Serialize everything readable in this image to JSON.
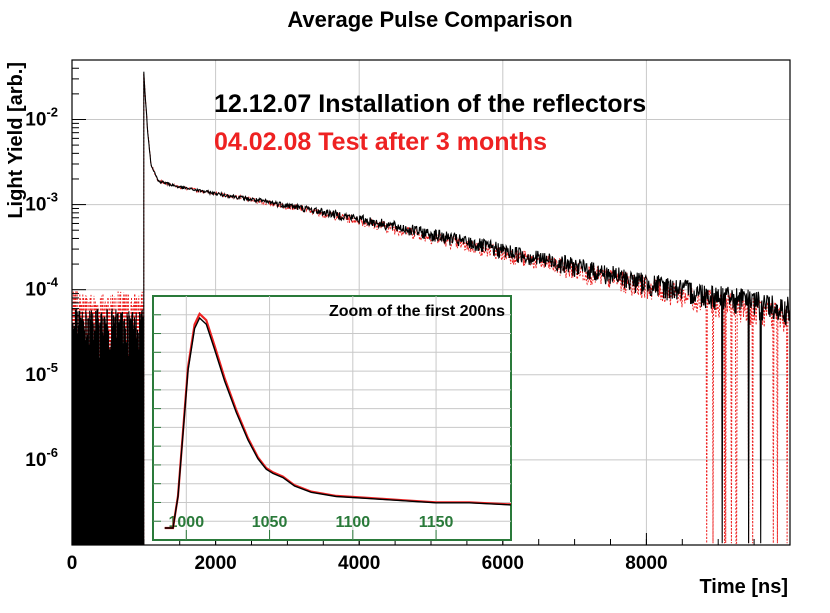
{
  "chart_data": {
    "type": "line",
    "title": "Average Pulse Comparison",
    "xlabel": "Time [ns]",
    "ylabel": "Light Yield [arb.]",
    "xscale": "linear",
    "yscale": "log",
    "xlim": [
      0,
      10000
    ],
    "ylim": [
      1e-07,
      0.05
    ],
    "grid": true,
    "x_ticks": [
      {
        "value": 0,
        "label": "0"
      },
      {
        "value": 2000,
        "label": "2000"
      },
      {
        "value": 4000,
        "label": "4000"
      },
      {
        "value": 6000,
        "label": "6000"
      },
      {
        "value": 8000,
        "label": "8000"
      }
    ],
    "y_ticks": [
      {
        "value": 1e-06,
        "base": "10",
        "exp": "-6"
      },
      {
        "value": 1e-05,
        "base": "10",
        "exp": "-5"
      },
      {
        "value": 0.0001,
        "base": "10",
        "exp": "-4"
      },
      {
        "value": 0.001,
        "base": "10",
        "exp": "-3"
      },
      {
        "value": 0.01,
        "base": "10",
        "exp": "-2"
      }
    ],
    "series": [
      {
        "name": "12.12.07 Installation of the reflectors",
        "color": "#000000",
        "style": "solid",
        "baseline_noise": 5e-05,
        "rise_time": 1000,
        "peak": 0.035,
        "points": [
          [
            1000,
            0.035
          ],
          [
            1050,
            0.008
          ],
          [
            1100,
            0.003
          ],
          [
            1200,
            0.0019
          ],
          [
            1500,
            0.0016
          ],
          [
            2000,
            0.00135
          ],
          [
            3000,
            0.00098
          ],
          [
            4000,
            0.00068
          ],
          [
            5000,
            0.00045
          ],
          [
            6000,
            0.00029
          ],
          [
            7000,
            0.00019
          ],
          [
            8000,
            0.00012
          ],
          [
            9000,
            8.5e-05
          ],
          [
            10000,
            6e-05
          ]
        ]
      },
      {
        "name": "04.02.08 Test after 3 months",
        "color": "#ee2222",
        "style": "dotted",
        "baseline_noise": 8e-05,
        "rise_time": 1000,
        "peak": 0.035,
        "points": [
          [
            1000,
            0.035
          ],
          [
            1050,
            0.008
          ],
          [
            1100,
            0.003
          ],
          [
            1200,
            0.0019
          ],
          [
            1500,
            0.0016
          ],
          [
            2000,
            0.00135
          ],
          [
            3000,
            0.00096
          ],
          [
            4000,
            0.00065
          ],
          [
            5000,
            0.00042
          ],
          [
            6000,
            0.00027
          ],
          [
            7000,
            0.00017
          ],
          [
            8000,
            0.00011
          ],
          [
            9000,
            7e-05
          ],
          [
            10000,
            5e-05
          ]
        ]
      }
    ],
    "inset": {
      "title": "Zoom of the first 200ns",
      "frame_color": "#2a7a3a",
      "x_range": [
        980,
        1195
      ],
      "x_ticks": [
        {
          "value": 1000,
          "label": "1000"
        },
        {
          "value": 1050,
          "label": "1050"
        },
        {
          "value": 1100,
          "label": "1100"
        },
        {
          "value": 1150,
          "label": "1150"
        }
      ],
      "series_points": [
        [
          987,
          0.0
        ],
        [
          992,
          0.0
        ],
        [
          995,
          0.15
        ],
        [
          998,
          0.45
        ],
        [
          1001,
          0.75
        ],
        [
          1005,
          0.95
        ],
        [
          1008,
          1.0
        ],
        [
          1012,
          0.97
        ],
        [
          1017,
          0.85
        ],
        [
          1023,
          0.7
        ],
        [
          1030,
          0.55
        ],
        [
          1037,
          0.42
        ],
        [
          1043,
          0.33
        ],
        [
          1048,
          0.28
        ],
        [
          1052,
          0.26
        ],
        [
          1058,
          0.24
        ],
        [
          1065,
          0.2
        ],
        [
          1075,
          0.17
        ],
        [
          1090,
          0.15
        ],
        [
          1110,
          0.14
        ],
        [
          1130,
          0.13
        ],
        [
          1150,
          0.12
        ],
        [
          1170,
          0.12
        ],
        [
          1195,
          0.11
        ]
      ]
    }
  }
}
